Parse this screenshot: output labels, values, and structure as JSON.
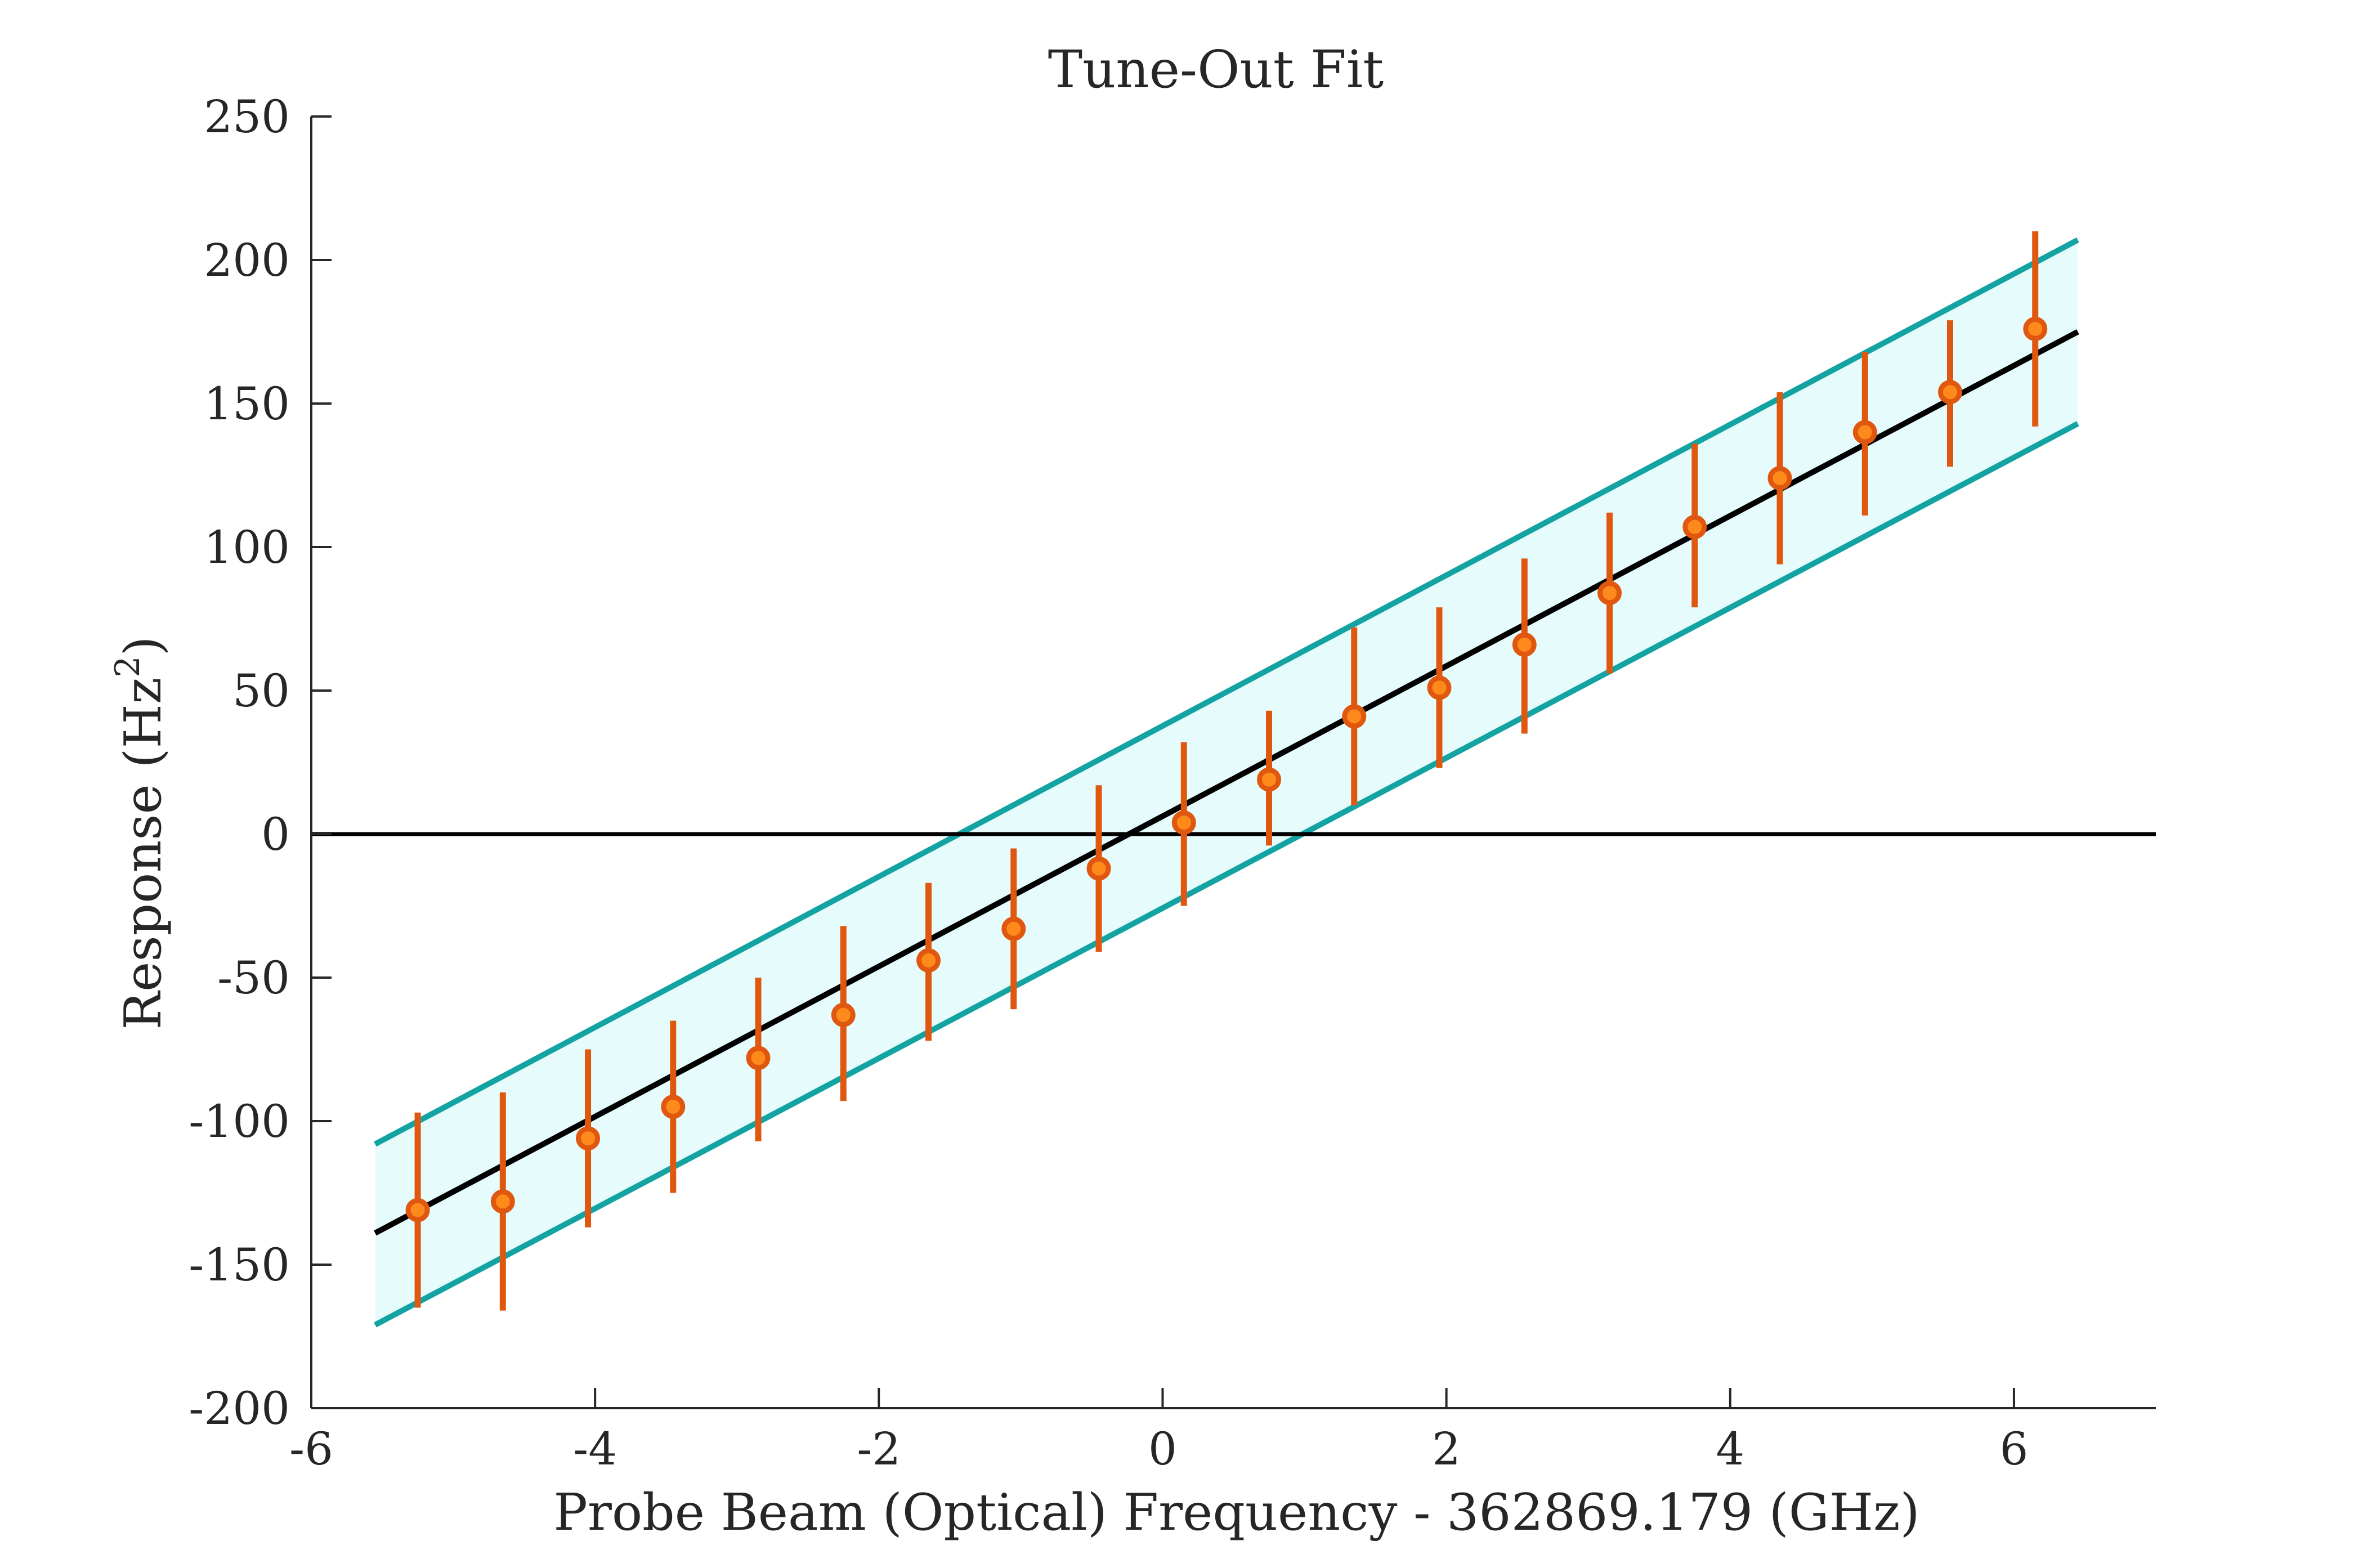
{
  "chart_data": {
    "type": "line",
    "title": "Tune-Out Fit",
    "xlabel": "Probe Beam (Optical) Frequency - 362869.179 (GHz)",
    "ylabel_main": "Response (Hz",
    "ylabel_sup": "2",
    "ylabel_close": ")",
    "xlim": [
      -6,
      7
    ],
    "ylim": [
      -200,
      250
    ],
    "xticks": [
      -6,
      -4,
      -2,
      0,
      2,
      4,
      6
    ],
    "yticks": [
      -200,
      -150,
      -100,
      -50,
      0,
      50,
      100,
      150,
      200,
      250
    ],
    "x_tick_labels": [
      "-6",
      "-4",
      "-2",
      "0",
      "2",
      "4",
      "6"
    ],
    "y_tick_labels": [
      "-200",
      "-150",
      "-100",
      "-50",
      "0",
      "50",
      "100",
      "150",
      "200",
      "250"
    ],
    "grid": false,
    "zero_line": 0,
    "fit": {
      "x": [
        -5.55,
        6.45
      ],
      "y": [
        -139,
        175
      ]
    },
    "band_upper": {
      "x": [
        -5.55,
        6.45
      ],
      "y": [
        -108,
        207
      ]
    },
    "band_lower": {
      "x": [
        -5.55,
        6.45
      ],
      "y": [
        -171,
        143
      ]
    },
    "points": {
      "x": [
        -5.25,
        -4.65,
        -4.05,
        -3.45,
        -2.85,
        -2.25,
        -1.65,
        -1.05,
        -0.45,
        0.15,
        0.75,
        1.35,
        1.95,
        2.55,
        3.15,
        3.75,
        4.35,
        4.95,
        5.55,
        6.15
      ],
      "y": [
        -131,
        -128,
        -106,
        -95,
        -78,
        -63,
        -44,
        -33,
        -12,
        4,
        19,
        41,
        51,
        66,
        84,
        107,
        124,
        140,
        154,
        176
      ],
      "err_low": [
        -165,
        -166,
        -137,
        -125,
        -107,
        -93,
        -72,
        -61,
        -41,
        -25,
        -4,
        10,
        23,
        35,
        56,
        79,
        94,
        111,
        128,
        142
      ],
      "err_high": [
        -97,
        -90,
        -75,
        -65,
        -50,
        -32,
        -17,
        -5,
        17,
        32,
        43,
        72,
        79,
        96,
        112,
        136,
        154,
        168,
        179,
        210
      ]
    },
    "colors": {
      "fit": "#000000",
      "band_edge": "#13a3a3",
      "band_fill": "#e6fcfc",
      "points": "#e0580f",
      "points_fill": "#ff8a1c",
      "axes": "#262626"
    }
  }
}
